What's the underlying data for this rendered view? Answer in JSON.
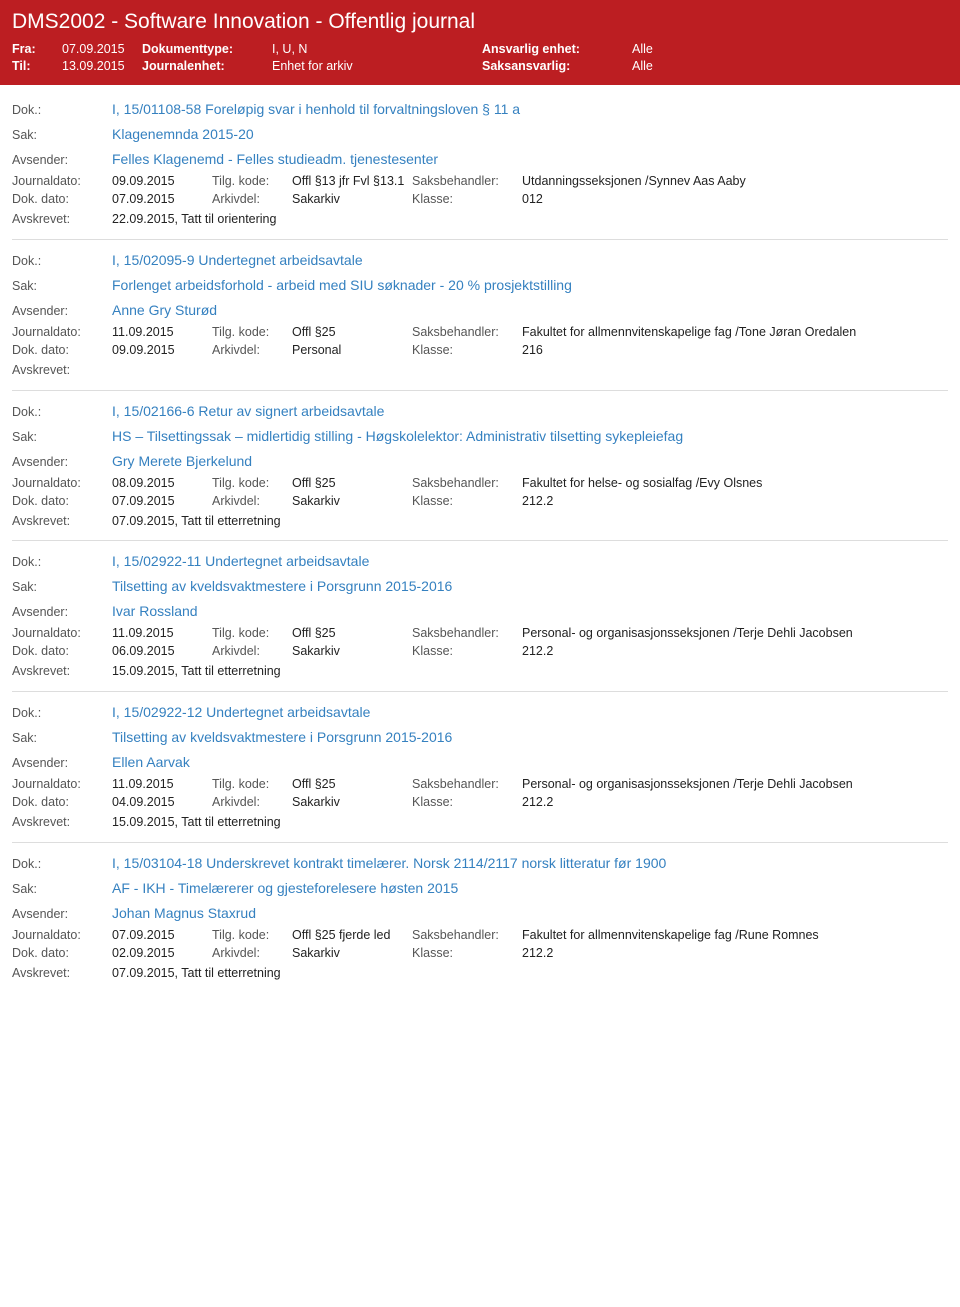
{
  "header": {
    "title": "DMS2002 - Software Innovation - Offentlig journal",
    "fra_label": "Fra:",
    "fra_value": "07.09.2015",
    "til_label": "Til:",
    "til_value": "13.09.2015",
    "doktype_label": "Dokumenttype:",
    "doktype_value": "I, U, N",
    "journalenhet_label": "Journalenhet:",
    "journalenhet_value": "Enhet for arkiv",
    "ansvarlig_label": "Ansvarlig enhet:",
    "ansvarlig_value": "Alle",
    "saksansvarlig_label": "Saksansvarlig:",
    "saksansvarlig_value": "Alle"
  },
  "labels": {
    "dok": "Dok.:",
    "sak": "Sak:",
    "avsender": "Avsender:",
    "journaldato": "Journaldato:",
    "tilgkode": "Tilg. kode:",
    "saksbehandler": "Saksbehandler:",
    "dokdato": "Dok. dato:",
    "arkivdel": "Arkivdel:",
    "klasse": "Klasse:",
    "avskrevet": "Avskrevet:"
  },
  "records": [
    {
      "dok": "I, 15/01108-58 Foreløpig svar i henhold til forvaltningsloven § 11 a",
      "sak": "Klagenemnda 2015-20",
      "avsender": "Felles Klagenemd - Felles studieadm. tjenestesenter",
      "journaldato": "09.09.2015",
      "tilgkode": "Offl §13 jfr Fvl §13.1",
      "saksbehandler": "Utdanningsseksjonen /Synnev Aas Aaby",
      "dokdato": "07.09.2015",
      "arkivdel": "Sakarkiv",
      "klasse": "012",
      "avskrevet": "22.09.2015, Tatt til orientering"
    },
    {
      "dok": "I, 15/02095-9 Undertegnet arbeidsavtale",
      "sak": "Forlenget arbeidsforhold - arbeid med SIU søknader - 20 % prosjektstilling",
      "avsender": "Anne Gry Sturød",
      "journaldato": "11.09.2015",
      "tilgkode": "Offl §25",
      "saksbehandler": "Fakultet for allmennvitenskapelige fag /Tone Jøran Oredalen",
      "dokdato": "09.09.2015",
      "arkivdel": "Personal",
      "klasse": "216",
      "avskrevet": ""
    },
    {
      "dok": "I, 15/02166-6 Retur av signert arbeidsavtale",
      "sak": "HS – Tilsettingssak – midlertidig stilling - Høgskolelektor: Administrativ tilsetting sykepleiefag",
      "avsender": "Gry Merete Bjerkelund",
      "journaldato": "08.09.2015",
      "tilgkode": "Offl §25",
      "saksbehandler": "Fakultet for helse- og sosialfag /Evy Olsnes",
      "dokdato": "07.09.2015",
      "arkivdel": "Sakarkiv",
      "klasse": "212.2",
      "avskrevet": "07.09.2015, Tatt til etterretning"
    },
    {
      "dok": "I, 15/02922-11 Undertegnet arbeidsavtale",
      "sak": "Tilsetting av kveldsvaktmestere i Porsgrunn 2015-2016",
      "avsender": "Ivar Rossland",
      "journaldato": "11.09.2015",
      "tilgkode": "Offl §25",
      "saksbehandler": "Personal- og organisasjonsseksjonen /Terje Dehli Jacobsen",
      "dokdato": "06.09.2015",
      "arkivdel": "Sakarkiv",
      "klasse": "212.2",
      "avskrevet": "15.09.2015, Tatt til etterretning"
    },
    {
      "dok": "I, 15/02922-12 Undertegnet arbeidsavtale",
      "sak": "Tilsetting av kveldsvaktmestere i Porsgrunn 2015-2016",
      "avsender": "Ellen Aarvak",
      "journaldato": "11.09.2015",
      "tilgkode": "Offl §25",
      "saksbehandler": "Personal- og organisasjonsseksjonen /Terje Dehli Jacobsen",
      "dokdato": "04.09.2015",
      "arkivdel": "Sakarkiv",
      "klasse": "212.2",
      "avskrevet": "15.09.2015, Tatt til etterretning"
    },
    {
      "dok": "I, 15/03104-18 Underskrevet kontrakt timelærer. Norsk 2114/2117 norsk litteratur før 1900",
      "sak": "AF - IKH - Timelærerer og gjesteforelesere høsten 2015",
      "avsender": "Johan Magnus Staxrud",
      "journaldato": "07.09.2015",
      "tilgkode": "Offl §25 fjerde led",
      "saksbehandler": "Fakultet for allmennvitenskapelige fag /Rune Romnes",
      "dokdato": "02.09.2015",
      "arkivdel": "Sakarkiv",
      "klasse": "212.2",
      "avskrevet": "07.09.2015, Tatt til etterretning"
    }
  ]
}
